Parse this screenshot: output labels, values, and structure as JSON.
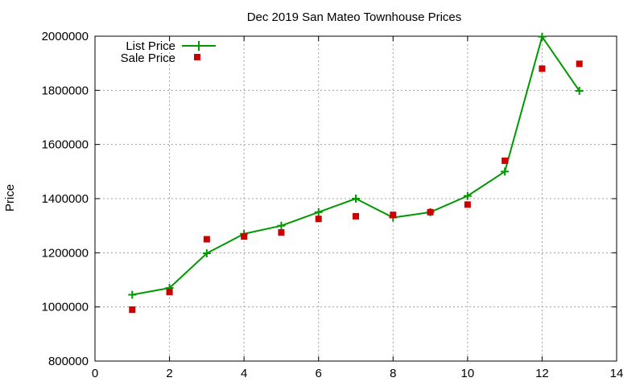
{
  "chart_data": {
    "type": "line",
    "title": "Dec 2019 San Mateo Townhouse Prices",
    "xlabel": "",
    "ylabel": "Price",
    "xlim": [
      0,
      14
    ],
    "ylim": [
      800000,
      2000000
    ],
    "xticks": [
      "0",
      "2",
      "4",
      "6",
      "8",
      "10",
      "12",
      "14"
    ],
    "yticks": [
      "800000",
      "1000000",
      "1200000",
      "1400000",
      "1600000",
      "1800000",
      "2000000"
    ],
    "grid": true,
    "legend_position": "top-left",
    "series": [
      {
        "name": "List Price",
        "kind": "line-with-plus-markers",
        "color": "#009900",
        "x": [
          1,
          2,
          3,
          4,
          5,
          6,
          7,
          8,
          9,
          10,
          11,
          12,
          13
        ],
        "y": [
          1045000,
          1070000,
          1198000,
          1270000,
          1300000,
          1350000,
          1400000,
          1330000,
          1350000,
          1410000,
          1500000,
          1998000,
          1798000
        ]
      },
      {
        "name": "Sale Price",
        "kind": "square-markers",
        "color": "#cc0000",
        "x": [
          1,
          2,
          3,
          4,
          5,
          6,
          7,
          8,
          9,
          10,
          11,
          12,
          13
        ],
        "y": [
          990000,
          1055000,
          1250000,
          1260000,
          1275000,
          1325000,
          1335000,
          1340000,
          1350000,
          1378000,
          1540000,
          1880000,
          1898000
        ]
      }
    ]
  }
}
